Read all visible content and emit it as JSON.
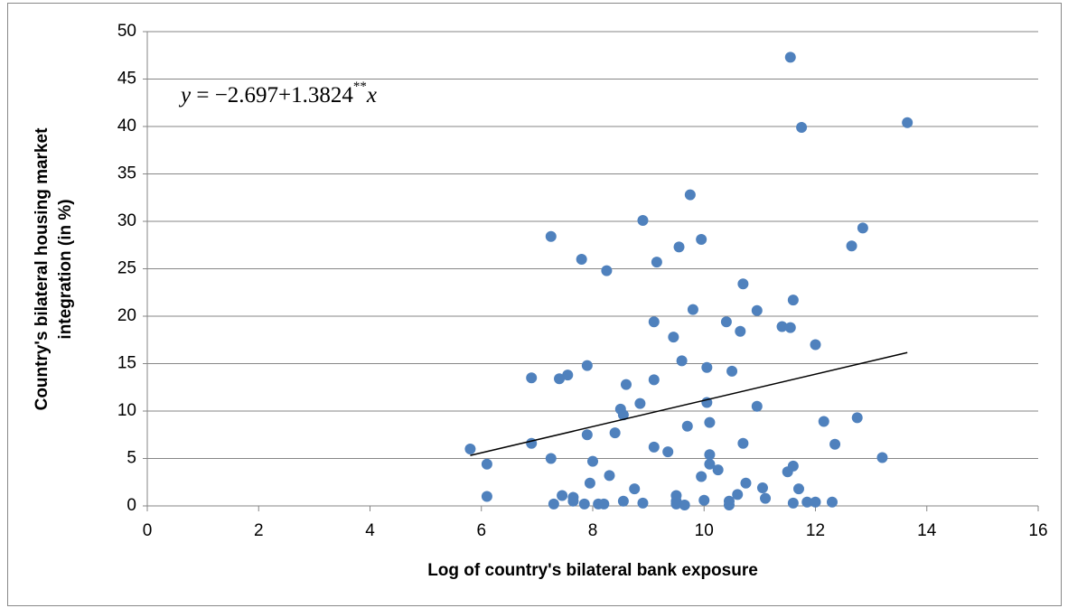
{
  "chart_data": {
    "type": "scatter",
    "annotation": [
      "y",
      " = −2.697+1.3824",
      "**",
      "x"
    ],
    "x_label": "Log of country's bilateral bank exposure",
    "y_label": [
      "Country's bilateral housing market",
      "integration  (in %)"
    ],
    "color": "#4f81bd",
    "x": [
      5.8,
      6.1,
      6.1,
      6.9,
      6.9,
      7.25,
      7.25,
      7.3,
      7.4,
      7.45,
      7.55,
      7.65,
      7.65,
      7.8,
      7.85,
      7.9,
      7.9,
      7.95,
      8.0,
      8.1,
      8.2,
      8.25,
      8.3,
      8.4,
      8.5,
      8.55,
      8.55,
      8.6,
      8.75,
      8.85,
      8.9,
      8.9,
      9.1,
      9.1,
      9.1,
      9.15,
      9.35,
      9.45,
      9.5,
      9.5,
      9.5,
      9.55,
      9.6,
      9.65,
      9.7,
      9.75,
      9.8,
      9.95,
      9.95,
      10.0,
      10.05,
      10.05,
      10.1,
      10.1,
      10.1,
      10.25,
      10.4,
      10.45,
      10.45,
      10.5,
      10.6,
      10.65,
      10.7,
      10.7,
      10.75,
      10.95,
      10.95,
      11.05,
      11.1,
      11.4,
      11.5,
      11.55,
      11.55,
      11.6,
      11.6,
      11.6,
      11.7,
      11.75,
      11.85,
      12.0,
      12.0,
      12.15,
      12.3,
      12.35,
      12.65,
      12.75,
      12.85,
      13.2,
      13.65
    ],
    "values": [
      6.0,
      4.4,
      1.0,
      13.5,
      6.6,
      5.0,
      28.4,
      0.2,
      13.4,
      1.1,
      13.8,
      0.9,
      0.5,
      26.0,
      0.2,
      7.5,
      14.8,
      2.4,
      4.7,
      0.2,
      0.2,
      24.8,
      3.2,
      7.7,
      10.2,
      9.6,
      0.5,
      12.8,
      1.8,
      10.8,
      0.3,
      30.1,
      6.2,
      13.3,
      19.4,
      25.7,
      5.7,
      17.8,
      0.5,
      1.1,
      0.2,
      27.3,
      15.3,
      0.1,
      8.4,
      32.8,
      20.7,
      3.1,
      28.1,
      0.6,
      10.9,
      14.6,
      5.4,
      4.4,
      8.8,
      3.8,
      19.4,
      0.5,
      0.1,
      14.2,
      1.2,
      18.4,
      23.4,
      6.6,
      2.4,
      20.6,
      10.5,
      1.9,
      0.8,
      18.9,
      3.6,
      18.8,
      47.3,
      21.7,
      4.2,
      0.3,
      1.8,
      39.9,
      0.4,
      0.4,
      17.0,
      8.9,
      0.4,
      6.5,
      27.4,
      9.3,
      29.3,
      5.1,
      40.4
    ],
    "trendline": {
      "x": [
        5.8,
        13.65
      ],
      "values": [
        5.32,
        16.17
      ],
      "color": "#000000"
    },
    "xlim": [
      0,
      16
    ],
    "xticks": [
      0,
      2,
      4,
      6,
      8,
      10,
      12,
      14,
      16
    ],
    "ylim": [
      0,
      50
    ],
    "yticks": [
      0,
      5,
      10,
      15,
      20,
      25,
      30,
      35,
      40,
      45,
      50
    ],
    "grid": true
  }
}
